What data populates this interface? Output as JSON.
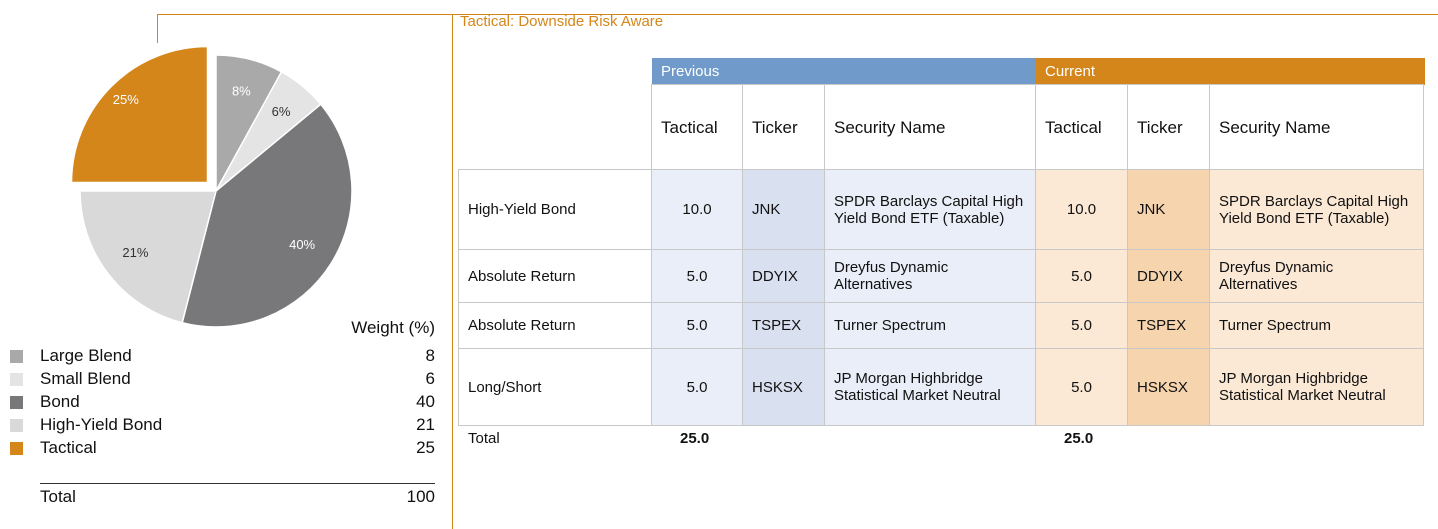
{
  "chart_data": {
    "type": "pie",
    "categories": [
      "Large Blend",
      "Small Blend",
      "Bond",
      "High-Yield Bond",
      "Tactical"
    ],
    "values": [
      8,
      6,
      40,
      21,
      25
    ],
    "value_labels": [
      "8%",
      "6%",
      "40%",
      "21%",
      "25%"
    ],
    "colors": [
      "#a9a9a9",
      "#e4e4e4",
      "#787779",
      "#d9d9d9",
      "#d4861a"
    ],
    "exploded": "Tactical",
    "legend_header": "Weight (%)",
    "legend_total": {
      "label": "Total",
      "value": 100
    }
  },
  "table": {
    "title": "Tactical: Downside Risk Aware",
    "groups": [
      "Previous",
      "Current"
    ],
    "columns": [
      "Tactical",
      "Ticker",
      "Security Name",
      "Tactical",
      "Ticker",
      "Security Name"
    ],
    "rows": [
      [
        "High-Yield Bond",
        "10.0",
        "JNK",
        "SPDR Barclays Capital High Yield Bond ETF (Taxable)",
        "10.0",
        "JNK",
        "SPDR Barclays Capital High Yield Bond ETF (Taxable)"
      ],
      [
        "Absolute Return",
        "5.0",
        "DDYIX",
        "Dreyfus Dynamic Alternatives",
        "5.0",
        "DDYIX",
        "Dreyfus Dynamic Alternatives"
      ],
      [
        "Absolute Return",
        "5.0",
        "TSPEX",
        "Turner Spectrum",
        "5.0",
        "TSPEX",
        "Turner Spectrum"
      ],
      [
        "Long/Short",
        "5.0",
        "HSKSX",
        "JP Morgan Highbridge Statistical Market Neutral",
        "5.0",
        "HSKSX",
        "JP Morgan Highbridge Statistical Market Neutral"
      ]
    ],
    "total": [
      "Total",
      "25.0",
      "25.0"
    ]
  }
}
